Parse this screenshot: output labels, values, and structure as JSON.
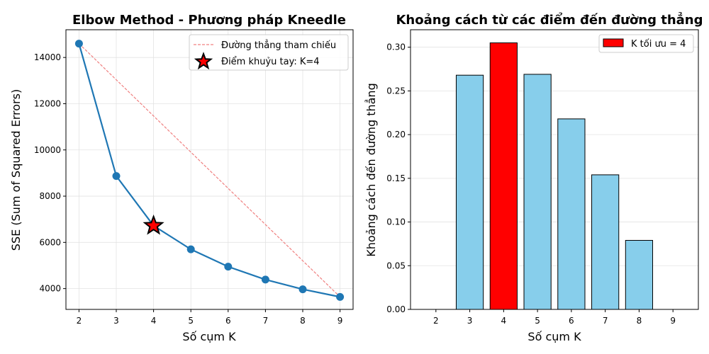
{
  "chart_data": [
    {
      "type": "line",
      "title": "Elbow Method - Phương pháp Kneedle",
      "xlabel": "Số cụm K",
      "ylabel": "SSE (Sum of Squared Errors)",
      "xlim": [
        1.65,
        9.35
      ],
      "ylim": [
        3100,
        15200
      ],
      "x_ticks": [
        2,
        3,
        4,
        5,
        6,
        7,
        8,
        9
      ],
      "y_ticks": [
        4000,
        6000,
        8000,
        10000,
        12000,
        14000
      ],
      "grid": true,
      "legend_position": "top-right",
      "series": [
        {
          "name": "",
          "color": "#1f77b4",
          "x": [
            2,
            3,
            4,
            5,
            6,
            7,
            8,
            9
          ],
          "y": [
            14600,
            8870,
            6720,
            5700,
            4950,
            4390,
            3970,
            3640
          ]
        }
      ],
      "reference_line": {
        "name": "Đường thẳng tham chiếu",
        "color": "#f08080",
        "x": [
          2,
          9
        ],
        "y": [
          14600,
          3640
        ]
      },
      "elbow_point": {
        "name": "Điểm khuỷu tay: K=4",
        "color": "#ff0000",
        "x": 4,
        "y": 6720
      }
    },
    {
      "type": "bar",
      "title": "Khoảng cách từ các điểm đến đường thẳng",
      "xlabel": "Số cụm K",
      "ylabel": "Khoảng cách đến đường thẳng",
      "xlim": [
        1.25,
        9.75
      ],
      "ylim": [
        0,
        0.32
      ],
      "y_ticks": [
        0.0,
        0.05,
        0.1,
        0.15,
        0.2,
        0.25,
        0.3
      ],
      "grid": true,
      "legend_position": "top-right",
      "categories": [
        "2",
        "3",
        "4",
        "5",
        "6",
        "7",
        "8",
        "9"
      ],
      "values": [
        0.0,
        0.268,
        0.305,
        0.269,
        0.218,
        0.154,
        0.079,
        0.0
      ],
      "bar_color": "#87ceeb",
      "highlight_index": 2,
      "highlight_color": "#ff0000",
      "legend_label": "K tối ưu = 4"
    }
  ]
}
